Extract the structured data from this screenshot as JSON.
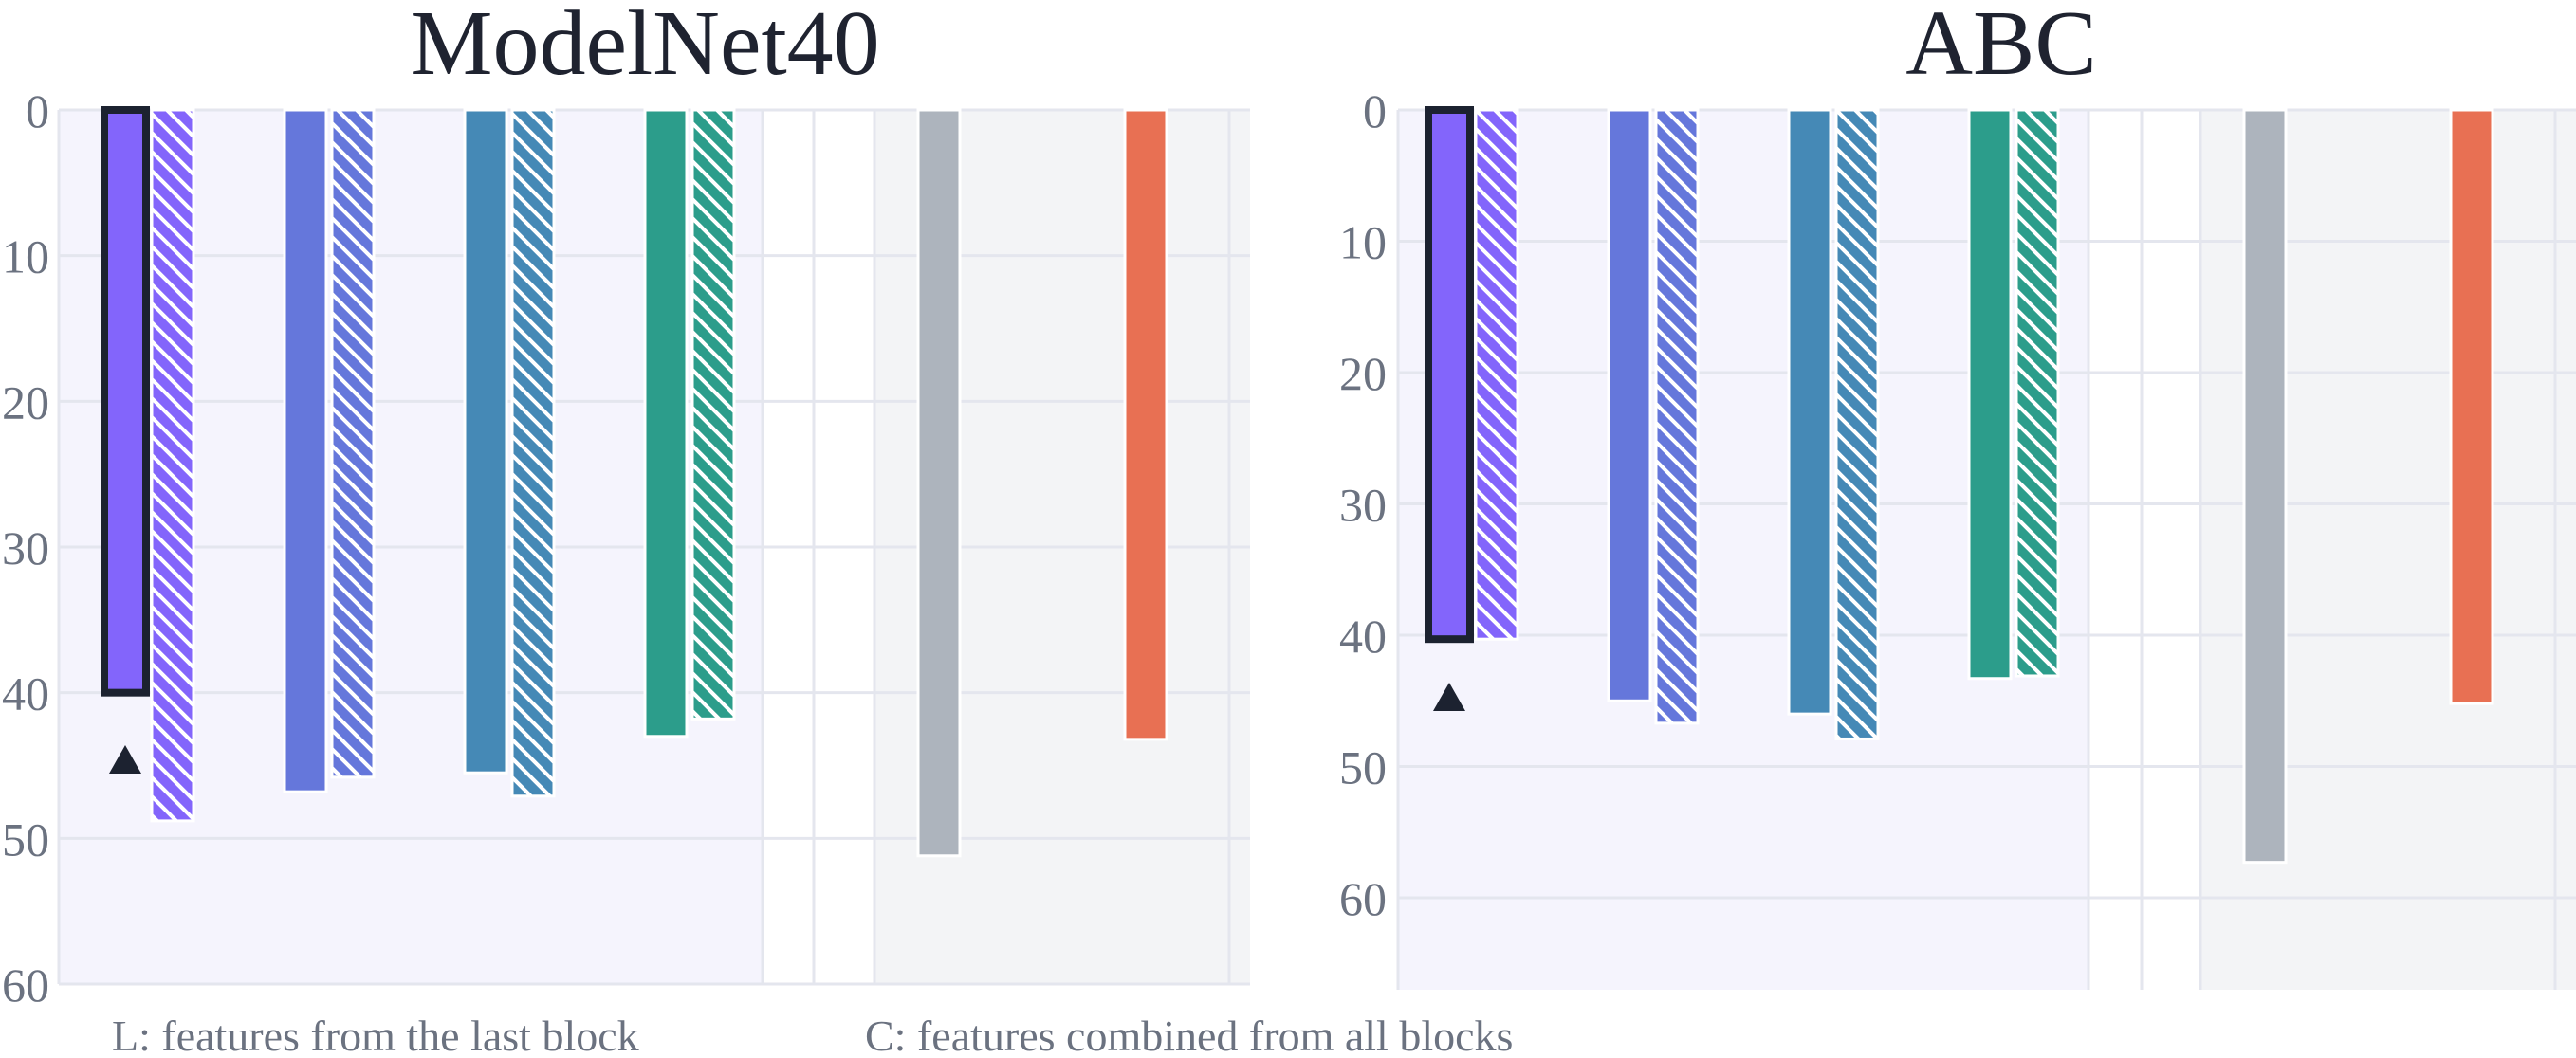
{
  "caption": {
    "left": "L: features from the last block",
    "right": "C: features combined from all blocks"
  },
  "chart_data": [
    {
      "type": "bar",
      "title": "ModelNet40",
      "y_axis": "reversed",
      "ylim": [
        0,
        60
      ],
      "yticks": [
        "0",
        "10",
        "20",
        "30",
        "40",
        "50",
        "60"
      ],
      "grid": true,
      "bars": [
        {
          "group": 1,
          "value": 40.0,
          "color": "#8365fb",
          "hatched": false,
          "highlighted": true
        },
        {
          "group": 1,
          "value": 48.8,
          "color": "#8365fb",
          "hatched": true
        },
        {
          "group": 2,
          "value": 46.8,
          "color": "#6577db",
          "hatched": false
        },
        {
          "group": 2,
          "value": 45.8,
          "color": "#6577db",
          "hatched": true
        },
        {
          "group": 3,
          "value": 45.5,
          "color": "#4589b6",
          "hatched": false
        },
        {
          "group": 3,
          "value": 47.1,
          "color": "#4589b6",
          "hatched": true
        },
        {
          "group": 4,
          "value": 43.0,
          "color": "#2c9d8b",
          "hatched": false
        },
        {
          "group": 4,
          "value": 41.8,
          "color": "#2c9d8b",
          "hatched": true
        },
        {
          "group": 5,
          "value": 51.2,
          "color": "#adb4bd",
          "hatched": false
        },
        {
          "group": 5,
          "value": 43.2,
          "color": "#e87053",
          "hatched": false
        }
      ],
      "marker": "triangle-up"
    },
    {
      "type": "bar",
      "title": "ABC",
      "y_axis": "reversed",
      "ylim": [
        0,
        67
      ],
      "yticks": [
        "0",
        "10",
        "20",
        "30",
        "40",
        "50",
        "60"
      ],
      "grid": true,
      "bars": [
        {
          "group": 1,
          "value": 40.3,
          "color": "#8365fb",
          "hatched": false,
          "highlighted": true
        },
        {
          "group": 1,
          "value": 40.3,
          "color": "#8365fb",
          "hatched": true
        },
        {
          "group": 2,
          "value": 45.0,
          "color": "#6577db",
          "hatched": false
        },
        {
          "group": 2,
          "value": 46.7,
          "color": "#6577db",
          "hatched": true
        },
        {
          "group": 3,
          "value": 46.0,
          "color": "#4589b6",
          "hatched": false
        },
        {
          "group": 3,
          "value": 47.9,
          "color": "#4589b6",
          "hatched": true
        },
        {
          "group": 4,
          "value": 43.3,
          "color": "#2c9d8b",
          "hatched": false
        },
        {
          "group": 4,
          "value": 43.1,
          "color": "#2c9d8b",
          "hatched": true
        },
        {
          "group": 5,
          "value": 57.3,
          "color": "#adb4bd",
          "hatched": false
        },
        {
          "group": 5,
          "value": 45.2,
          "color": "#e87053",
          "hatched": false
        }
      ],
      "marker": "triangle-up"
    }
  ]
}
